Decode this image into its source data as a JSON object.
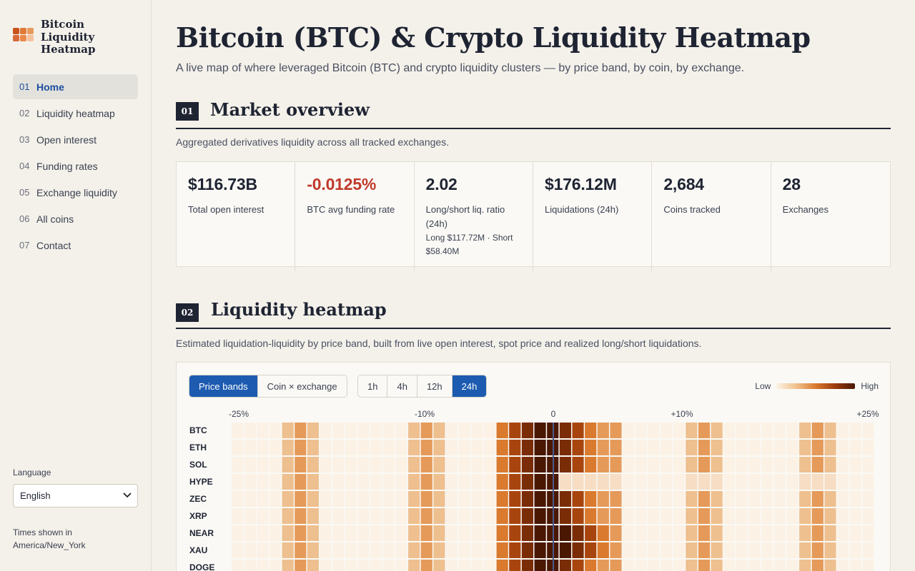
{
  "brand": {
    "name": "Bitcoin Liquidity Heatmap",
    "logo_colors": [
      "#c8531c",
      "#e07a35",
      "#e89a5e",
      "#d9693a",
      "#ea8a4b",
      "#f3c29d"
    ]
  },
  "nav": [
    {
      "num": "01",
      "label": "Home",
      "active": true
    },
    {
      "num": "02",
      "label": "Liquidity heatmap"
    },
    {
      "num": "03",
      "label": "Open interest"
    },
    {
      "num": "04",
      "label": "Funding rates"
    },
    {
      "num": "05",
      "label": "Exchange liquidity"
    },
    {
      "num": "06",
      "label": "All coins"
    },
    {
      "num": "07",
      "label": "Contact"
    }
  ],
  "language": {
    "label": "Language",
    "selected": "English"
  },
  "timezone_note": "Times shown in America/New_York",
  "page": {
    "title": "Bitcoin (BTC) & Crypto Liquidity Heatmap",
    "subtitle": "A live map of where leveraged Bitcoin (BTC) and crypto liquidity clusters — by price band, by coin, by exchange."
  },
  "overview": {
    "num": "01",
    "title": "Market overview",
    "desc": "Aggregated derivatives liquidity across all tracked exchanges.",
    "stats": [
      {
        "value": "$116.73B",
        "label": "Total open interest",
        "sub": ""
      },
      {
        "value": "-0.0125%",
        "label": "BTC avg funding rate",
        "sub": "",
        "negative": true
      },
      {
        "value": "2.02",
        "label": "Long/short liq. ratio (24h)",
        "sub": "Long $117.72M · Short $58.40M"
      },
      {
        "value": "$176.12M",
        "label": "Liquidations (24h)",
        "sub": ""
      },
      {
        "value": "2,684",
        "label": "Coins tracked",
        "sub": ""
      },
      {
        "value": "28",
        "label": "Exchanges",
        "sub": ""
      }
    ]
  },
  "heatmap": {
    "num": "02",
    "title": "Liquidity heatmap",
    "desc": "Estimated liquidation-liquidity by price band, built from live open interest, spot price and realized long/short liquidations.",
    "view_tabs": [
      {
        "label": "Price bands",
        "active": true
      },
      {
        "label": "Coin × exchange",
        "active": false
      }
    ],
    "range_tabs": [
      {
        "label": "1h",
        "active": false
      },
      {
        "label": "4h",
        "active": false
      },
      {
        "label": "12h",
        "active": false
      },
      {
        "label": "24h",
        "active": true
      }
    ],
    "legend": {
      "low": "Low",
      "high": "High"
    },
    "x_ticks": [
      "-25%",
      "-10%",
      "0",
      "+10%",
      "+25%"
    ],
    "rows": [
      "BTC",
      "ETH",
      "SOL",
      "HYPE",
      "ZEC",
      "XRP",
      "NEAR",
      "XAU",
      "DOGE"
    ]
  },
  "chart_data": {
    "type": "heatmap",
    "x_range_pct": [
      -25,
      25
    ],
    "x_ticks": [
      "-25%",
      "-10%",
      "0",
      "+10%",
      "+25%"
    ],
    "columns": 51,
    "rows": [
      "BTC",
      "ETH",
      "SOL",
      "HYPE",
      "ZEC",
      "XRP",
      "NEAR",
      "XAU",
      "DOGE"
    ],
    "intensity_scale": [
      0,
      9
    ],
    "row_profiles": {
      "BTC": [
        0,
        0,
        0,
        0,
        4,
        5,
        4,
        0,
        0,
        0,
        0,
        0,
        0,
        0,
        4,
        5,
        4,
        0,
        0,
        0,
        0,
        6,
        7,
        8,
        9,
        9,
        8,
        7,
        6,
        5,
        5,
        0,
        0,
        0,
        0,
        0,
        4,
        5,
        4,
        0,
        0,
        0,
        0,
        0,
        0,
        4,
        5,
        4,
        0,
        0,
        0
      ],
      "ETH": [
        0,
        0,
        0,
        0,
        4,
        5,
        4,
        0,
        0,
        0,
        0,
        0,
        0,
        0,
        4,
        5,
        4,
        0,
        0,
        0,
        0,
        6,
        7,
        8,
        9,
        9,
        8,
        7,
        6,
        5,
        5,
        0,
        0,
        0,
        0,
        0,
        4,
        5,
        4,
        0,
        0,
        0,
        0,
        0,
        0,
        4,
        5,
        4,
        0,
        0,
        0
      ],
      "SOL": [
        0,
        0,
        0,
        0,
        4,
        5,
        4,
        0,
        0,
        0,
        0,
        0,
        0,
        0,
        4,
        5,
        4,
        0,
        0,
        0,
        0,
        6,
        7,
        8,
        9,
        9,
        8,
        7,
        6,
        5,
        5,
        0,
        0,
        0,
        0,
        0,
        4,
        5,
        4,
        0,
        0,
        0,
        0,
        0,
        0,
        4,
        5,
        4,
        0,
        0,
        0
      ],
      "HYPE": [
        0,
        0,
        0,
        0,
        4,
        5,
        4,
        0,
        0,
        0,
        0,
        0,
        0,
        0,
        4,
        5,
        4,
        0,
        0,
        0,
        0,
        6,
        7,
        8,
        9,
        9,
        2,
        2,
        2,
        2,
        2,
        0,
        0,
        0,
        0,
        0,
        2,
        2,
        2,
        0,
        0,
        0,
        0,
        0,
        0,
        2,
        2,
        2,
        0,
        0,
        0
      ],
      "ZEC": [
        0,
        0,
        0,
        0,
        4,
        5,
        4,
        0,
        0,
        0,
        0,
        0,
        0,
        0,
        4,
        5,
        4,
        0,
        0,
        0,
        0,
        6,
        7,
        8,
        9,
        9,
        8,
        7,
        6,
        5,
        5,
        0,
        0,
        0,
        0,
        0,
        4,
        5,
        4,
        0,
        0,
        0,
        0,
        0,
        0,
        4,
        5,
        4,
        0,
        0,
        0
      ],
      "XRP": [
        0,
        0,
        0,
        0,
        4,
        5,
        4,
        0,
        0,
        0,
        0,
        0,
        0,
        0,
        4,
        5,
        4,
        0,
        0,
        0,
        0,
        6,
        7,
        8,
        9,
        9,
        8,
        7,
        6,
        5,
        5,
        0,
        0,
        0,
        0,
        0,
        4,
        5,
        4,
        0,
        0,
        0,
        0,
        0,
        0,
        4,
        5,
        4,
        0,
        0,
        0
      ],
      "NEAR": [
        0,
        0,
        0,
        0,
        4,
        5,
        4,
        0,
        0,
        0,
        0,
        0,
        0,
        0,
        4,
        5,
        4,
        0,
        0,
        0,
        0,
        6,
        7,
        8,
        9,
        9,
        9,
        8,
        7,
        6,
        5,
        0,
        0,
        0,
        0,
        0,
        4,
        5,
        4,
        0,
        0,
        0,
        0,
        0,
        0,
        4,
        5,
        4,
        0,
        0,
        0
      ],
      "XAU": [
        0,
        0,
        0,
        0,
        4,
        5,
        4,
        0,
        0,
        0,
        0,
        0,
        0,
        0,
        4,
        5,
        4,
        0,
        0,
        0,
        0,
        6,
        7,
        8,
        9,
        9,
        9,
        8,
        7,
        6,
        5,
        0,
        0,
        0,
        0,
        0,
        4,
        5,
        4,
        0,
        0,
        0,
        0,
        0,
        0,
        4,
        5,
        4,
        0,
        0,
        0
      ],
      "DOGE": [
        0,
        0,
        0,
        0,
        4,
        5,
        4,
        0,
        0,
        0,
        0,
        0,
        0,
        0,
        4,
        5,
        4,
        0,
        0,
        0,
        0,
        6,
        7,
        8,
        9,
        9,
        8,
        7,
        6,
        5,
        5,
        0,
        0,
        0,
        0,
        0,
        4,
        5,
        4,
        0,
        0,
        0,
        0,
        0,
        0,
        4,
        5,
        4,
        0,
        0,
        0
      ]
    },
    "palette": [
      "#fbf1e5",
      "#f9e9d6",
      "#f6ddc3",
      "#f3ceaa",
      "#eebf8f",
      "#e59a5a",
      "#d97a2f",
      "#a8450f",
      "#7a2c07",
      "#4a1703"
    ],
    "marker_at_pct": 0
  }
}
